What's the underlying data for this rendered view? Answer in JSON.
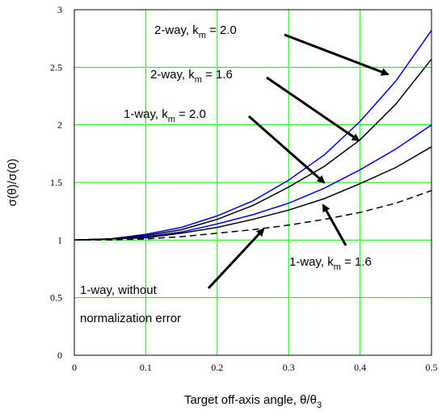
{
  "chart_data": {
    "type": "line",
    "xlabel": "Target off-axis angle, θ/θ3",
    "ylabel": "σ(θ)/σ(0)",
    "xlim": [
      0,
      0.5
    ],
    "ylim": [
      0,
      3
    ],
    "grid": true,
    "grid_color": "#00ee00",
    "x_ticks": [
      "0",
      "0.1",
      "0.2",
      "0.3",
      "0.4",
      "0.5"
    ],
    "y_ticks": [
      "0",
      "0.5",
      "1",
      "1.5",
      "2",
      "2.5",
      "3"
    ],
    "x_tick_values": [
      0,
      0.1,
      0.2,
      0.3,
      0.4,
      0.5
    ],
    "y_tick_values": [
      0,
      0.5,
      1,
      1.5,
      2,
      2.5,
      3
    ],
    "series": [
      {
        "name": "2-way, km = 2.0",
        "color": "#0000dd",
        "style": "solid",
        "x": [
          0,
          0.05,
          0.1,
          0.15,
          0.2,
          0.25,
          0.3,
          0.35,
          0.4,
          0.45,
          0.5
        ],
        "y": [
          1.0,
          1.01,
          1.05,
          1.11,
          1.21,
          1.34,
          1.52,
          1.74,
          2.03,
          2.38,
          2.82
        ]
      },
      {
        "name": "2-way, km = 1.6",
        "color": "#000000",
        "style": "solid",
        "x": [
          0,
          0.05,
          0.1,
          0.15,
          0.2,
          0.25,
          0.3,
          0.35,
          0.4,
          0.45,
          0.5
        ],
        "y": [
          1.0,
          1.01,
          1.04,
          1.09,
          1.18,
          1.3,
          1.46,
          1.64,
          1.87,
          2.18,
          2.57
        ]
      },
      {
        "name": "1-way, km = 2.0",
        "color": "#0000dd",
        "style": "solid",
        "x": [
          0,
          0.05,
          0.1,
          0.15,
          0.2,
          0.25,
          0.3,
          0.35,
          0.4,
          0.45,
          0.5
        ],
        "y": [
          1.0,
          1.01,
          1.03,
          1.07,
          1.14,
          1.22,
          1.32,
          1.45,
          1.61,
          1.79,
          2.0
        ]
      },
      {
        "name": "1-way, km = 1.6",
        "color": "#000000",
        "style": "solid",
        "x": [
          0,
          0.05,
          0.1,
          0.15,
          0.2,
          0.25,
          0.3,
          0.35,
          0.4,
          0.45,
          0.5
        ],
        "y": [
          1.0,
          1.01,
          1.02,
          1.06,
          1.11,
          1.18,
          1.26,
          1.36,
          1.49,
          1.63,
          1.81
        ]
      },
      {
        "name": "1-way, without normalization error",
        "color": "#000000",
        "style": "dashed",
        "x": [
          0,
          0.05,
          0.1,
          0.15,
          0.2,
          0.25,
          0.3,
          0.35,
          0.4,
          0.45,
          0.5
        ],
        "y": [
          1.0,
          1.0,
          1.01,
          1.03,
          1.06,
          1.09,
          1.13,
          1.18,
          1.24,
          1.32,
          1.43
        ]
      }
    ],
    "annotations": [
      {
        "id": "a1",
        "prefix": "2-way, k",
        "sub": "m",
        "suffix": " = 2.0"
      },
      {
        "id": "a2",
        "prefix": "2-way, k",
        "sub": "m",
        "suffix": " = 1.6"
      },
      {
        "id": "a3",
        "prefix": "1-way, k",
        "sub": "m",
        "suffix": " = 2.0"
      },
      {
        "id": "a4",
        "prefix": "1-way, k",
        "sub": "m",
        "suffix": " = 1.6"
      },
      {
        "id": "a5",
        "line1": "1-way, without",
        "line2": "normalization error"
      }
    ]
  }
}
